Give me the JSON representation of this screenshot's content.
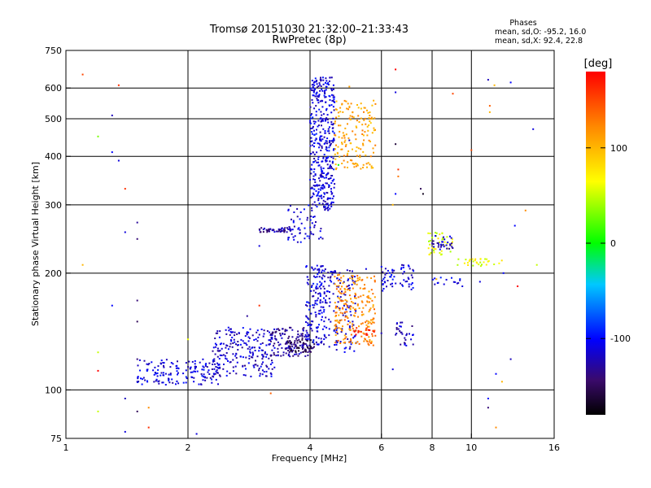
{
  "header": {
    "title_line1": "Tromsø 20151030 21:32:00–21:33:43",
    "title_line2": "RwPretec (8p)"
  },
  "phases": {
    "title": "Phases",
    "line_o": "mean, sd,O: -95.2, 16.0",
    "line_x": "mean, sd,X:  92.4, 22.8"
  },
  "colorbar": {
    "unit_label": "[deg]",
    "ticks": [
      {
        "label": "100",
        "value": 100
      },
      {
        "label": "0",
        "value": 0
      },
      {
        "label": "-100",
        "value": -100
      }
    ],
    "range": [
      -180,
      180
    ]
  },
  "chart_data": {
    "type": "scatter",
    "title": "Tromsø 20151030 21:32:00–21:33:43",
    "subtitle": "RwPretec (8p)",
    "xlabel": "Frequency [MHz]",
    "ylabel": "Stationary phase Virtual Height [km]",
    "xscale": "log",
    "yscale": "log",
    "xlim": [
      1,
      16
    ],
    "ylim": [
      75,
      750
    ],
    "xticks": [
      {
        "value": 1,
        "label": "1"
      },
      {
        "value": 2,
        "label": "2"
      },
      {
        "value": 4,
        "label": "4"
      },
      {
        "value": 6,
        "label": "6"
      },
      {
        "value": 8,
        "label": "8"
      },
      {
        "value": 10,
        "label": "10"
      },
      {
        "value": 16,
        "label": "16"
      }
    ],
    "xgrid": [
      2,
      4,
      6,
      8,
      10
    ],
    "yticks": [
      {
        "value": 75,
        "label": "75"
      },
      {
        "value": 100,
        "label": "100"
      },
      {
        "value": 200,
        "label": "200"
      },
      {
        "value": 300,
        "label": "300"
      },
      {
        "value": 400,
        "label": "400"
      },
      {
        "value": 500,
        "label": "500"
      },
      {
        "value": 600,
        "label": "600"
      },
      {
        "value": 750,
        "label": "750"
      }
    ],
    "ygrid": [
      100,
      200,
      300,
      400,
      500,
      600
    ],
    "grid": true,
    "color_value": "phase [deg]",
    "clusters": [
      {
        "x": [
          1.5,
          2.4
        ],
        "y": [
          103,
          120
        ],
        "phase": -110,
        "n": 160
      },
      {
        "x": [
          2.3,
          3.3
        ],
        "y": [
          108,
          145
        ],
        "phase": -115,
        "n": 220
      },
      {
        "x": [
          3.2,
          4.0
        ],
        "y": [
          122,
          145
        ],
        "phase": -130,
        "n": 120
      },
      {
        "x": [
          3.5,
          4.1
        ],
        "y": [
          125,
          135
        ],
        "phase": -150,
        "n": 60
      },
      {
        "x": [
          3.9,
          4.4
        ],
        "y": [
          130,
          210
        ],
        "phase": -110,
        "n": 160
      },
      {
        "x": [
          4.4,
          5.2
        ],
        "y": [
          125,
          205
        ],
        "phase": -115,
        "n": 120
      },
      {
        "x": [
          4.0,
          4.6
        ],
        "y": [
          290,
          640
        ],
        "phase": -110,
        "n": 400
      },
      {
        "x": [
          3.5,
          4.3
        ],
        "y": [
          240,
          300
        ],
        "phase": -110,
        "n": 60
      },
      {
        "x": [
          3.0,
          3.6
        ],
        "y": [
          255,
          262
        ],
        "phase": -130,
        "n": 50
      },
      {
        "x": [
          4.6,
          5.8
        ],
        "y": [
          370,
          560
        ],
        "phase": 110,
        "n": 160
      },
      {
        "x": [
          4.6,
          5.8
        ],
        "y": [
          130,
          200
        ],
        "phase": 120,
        "n": 220
      },
      {
        "x": [
          5.1,
          5.8
        ],
        "y": [
          138,
          145
        ],
        "phase": 160,
        "n": 20
      },
      {
        "x": [
          6.0,
          7.2
        ],
        "y": [
          180,
          210
        ],
        "phase": -110,
        "n": 60
      },
      {
        "x": [
          6.5,
          7.2
        ],
        "y": [
          130,
          150
        ],
        "phase": -120,
        "n": 30
      },
      {
        "x": [
          7.8,
          9.0
        ],
        "y": [
          220,
          255
        ],
        "phase": 60,
        "n": 40
      },
      {
        "x": [
          8.0,
          9.0
        ],
        "y": [
          230,
          250
        ],
        "phase": -120,
        "n": 30
      },
      {
        "x": [
          9.0,
          12.0
        ],
        "y": [
          208,
          218
        ],
        "phase": 60,
        "n": 30
      },
      {
        "x": [
          8.0,
          9.5
        ],
        "y": [
          185,
          195
        ],
        "phase": -110,
        "n": 15
      }
    ],
    "scattered_points": [
      [
        1.1,
        650,
        150
      ],
      [
        1.35,
        610,
        160
      ],
      [
        1.3,
        510,
        -120
      ],
      [
        1.35,
        390,
        -110
      ],
      [
        1.3,
        410,
        -100
      ],
      [
        1.2,
        450,
        30
      ],
      [
        1.4,
        330,
        160
      ],
      [
        1.4,
        255,
        -110
      ],
      [
        1.5,
        270,
        -130
      ],
      [
        1.5,
        245,
        -140
      ],
      [
        1.1,
        210,
        100
      ],
      [
        1.3,
        165,
        -100
      ],
      [
        1.5,
        170,
        -140
      ],
      [
        1.5,
        150,
        -150
      ],
      [
        1.2,
        125,
        50
      ],
      [
        1.5,
        120,
        -140
      ],
      [
        1.2,
        112,
        180
      ],
      [
        1.5,
        105,
        -120
      ],
      [
        1.4,
        95,
        -120
      ],
      [
        1.5,
        88,
        -150
      ],
      [
        1.2,
        88,
        50
      ],
      [
        1.6,
        90,
        120
      ],
      [
        1.6,
        80,
        160
      ],
      [
        1.4,
        78,
        -110
      ],
      [
        2.1,
        77,
        -110
      ],
      [
        2.0,
        135,
        60
      ],
      [
        2.5,
        130,
        -120
      ],
      [
        2.8,
        155,
        -130
      ],
      [
        3.0,
        165,
        160
      ],
      [
        3.2,
        98,
        140
      ],
      [
        3.0,
        235,
        -110
      ],
      [
        4.7,
        380,
        0
      ],
      [
        5.0,
        440,
        -120
      ],
      [
        5.0,
        605,
        110
      ],
      [
        6.5,
        670,
        180
      ],
      [
        6.5,
        585,
        -110
      ],
      [
        6.5,
        430,
        -160
      ],
      [
        6.6,
        370,
        160
      ],
      [
        6.6,
        355,
        130
      ],
      [
        6.5,
        320,
        -100
      ],
      [
        6.4,
        300,
        100
      ],
      [
        7.5,
        330,
        -150
      ],
      [
        7.6,
        320,
        -170
      ],
      [
        9.0,
        580,
        150
      ],
      [
        10.0,
        415,
        150
      ],
      [
        11.0,
        630,
        -120
      ],
      [
        11.1,
        540,
        140
      ],
      [
        11.4,
        610,
        100
      ],
      [
        11.1,
        520,
        100
      ],
      [
        12.5,
        620,
        -100
      ],
      [
        14.2,
        470,
        -110
      ],
      [
        13.6,
        290,
        120
      ],
      [
        12.8,
        265,
        -100
      ],
      [
        12.0,
        200,
        -100
      ],
      [
        13.0,
        185,
        180
      ],
      [
        14.5,
        210,
        50
      ],
      [
        12.5,
        120,
        -120
      ],
      [
        11.5,
        110,
        -100
      ],
      [
        11.9,
        105,
        100
      ],
      [
        11.0,
        95,
        -100
      ],
      [
        11.0,
        90,
        -140
      ],
      [
        11.5,
        80,
        120
      ],
      [
        5.5,
        205,
        -110
      ],
      [
        6.0,
        140,
        -120
      ],
      [
        6.4,
        113,
        -110
      ],
      [
        9.5,
        185,
        -110
      ],
      [
        10.5,
        190,
        -110
      ],
      [
        8.2,
        193,
        100
      ]
    ]
  }
}
